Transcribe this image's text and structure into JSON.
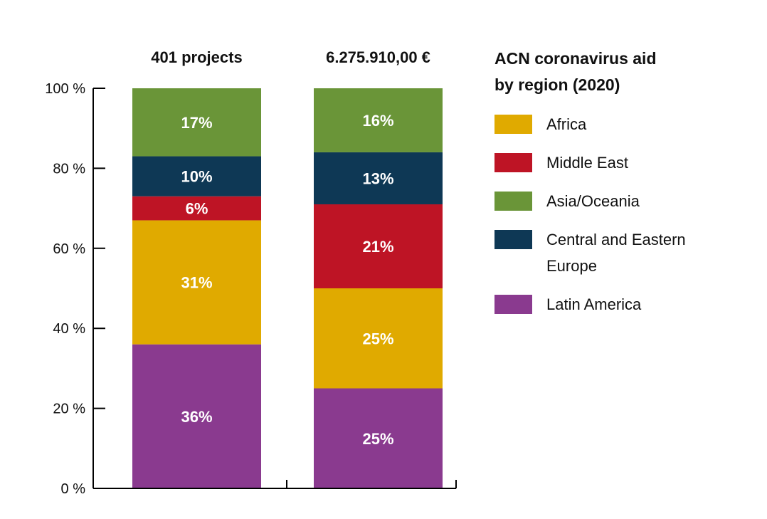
{
  "chart_data": {
    "type": "bar",
    "stacked": true,
    "categories": [
      "401 projects",
      "6.275.910,00 €"
    ],
    "series": [
      {
        "name": "Latin America",
        "color": "#8a3a8f",
        "values": [
          36,
          25
        ],
        "labels": [
          "36%",
          "25%"
        ]
      },
      {
        "name": "Africa",
        "color": "#e0aa00",
        "values": [
          31,
          25
        ],
        "labels": [
          "31%",
          "25%"
        ]
      },
      {
        "name": "Middle East",
        "color": "#be1425",
        "values": [
          6,
          21
        ],
        "labels": [
          "6%",
          "21%"
        ]
      },
      {
        "name": "Central and Eastern Europe",
        "color": "#0e3855",
        "values": [
          10,
          13
        ],
        "labels": [
          "10%",
          "13%"
        ]
      },
      {
        "name": "Asia/Oceania",
        "color": "#6a9538",
        "values": [
          17,
          16
        ],
        "labels": [
          "17%",
          "16%"
        ]
      }
    ],
    "ylim": [
      0,
      100
    ],
    "yticks": [
      0,
      20,
      40,
      60,
      80,
      100
    ],
    "ytick_labels": [
      "0 %",
      "20 %",
      "40 %",
      "60 %",
      "80 %",
      "100 %"
    ],
    "grid": false,
    "legend_position": "right"
  },
  "legend": {
    "title_line1": "ACN coronavirus aid",
    "title_line2": "by region (2020)",
    "items": [
      {
        "label": "Africa",
        "color": "#e0aa00"
      },
      {
        "label": "Middle East",
        "color": "#be1425"
      },
      {
        "label": "Asia/Oceania",
        "color": "#6a9538"
      },
      {
        "label": "Central and Eastern Europe",
        "color": "#0e3855"
      },
      {
        "label": "Latin America",
        "color": "#8a3a8f"
      }
    ]
  }
}
